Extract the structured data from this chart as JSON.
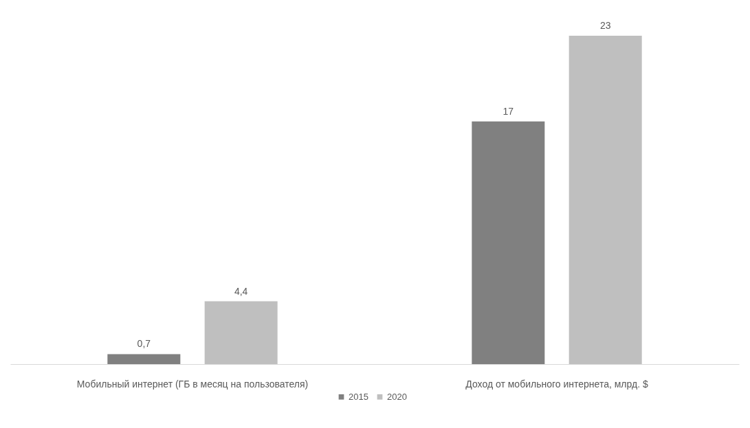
{
  "chart_data": {
    "type": "bar",
    "categories": [
      "Мобильный интернет (ГБ в месяц на пользователя)",
      "Доход от мобильного интернета, млрд. $"
    ],
    "series": [
      {
        "name": "2015",
        "color": "#808080",
        "values": [
          0.7,
          17
        ],
        "value_labels": [
          "0,7",
          "17"
        ]
      },
      {
        "name": "2020",
        "color": "#bfbfbf",
        "values": [
          4.4,
          23
        ],
        "value_labels": [
          "4,4",
          "23"
        ]
      }
    ],
    "legend": "bottom"
  }
}
